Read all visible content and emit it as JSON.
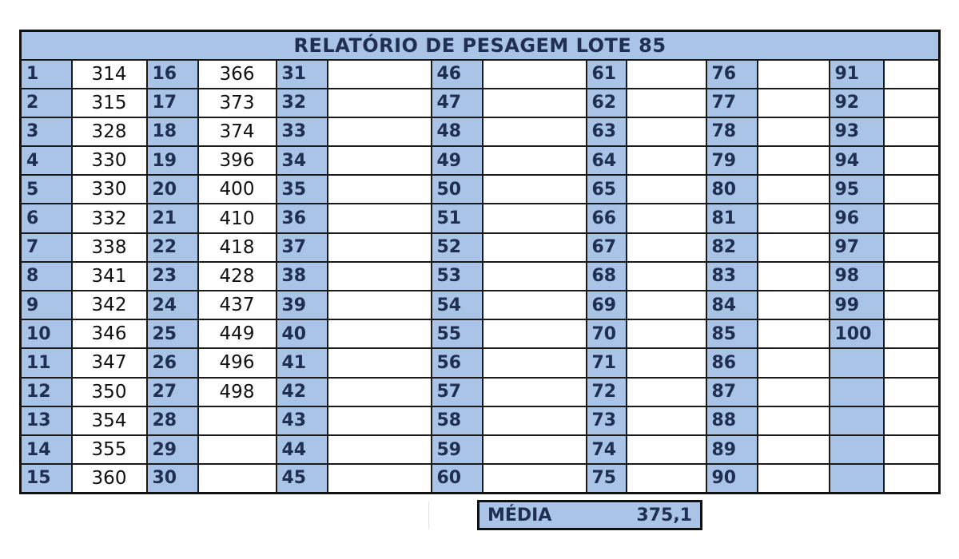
{
  "report": {
    "title": "RELATÓRIO DE PESAGEM LOTE 85",
    "columns": [
      {
        "numbers": [
          "1",
          "2",
          "3",
          "4",
          "5",
          "6",
          "7",
          "8",
          "9",
          "10",
          "11",
          "12",
          "13",
          "14",
          "15"
        ],
        "values": [
          "314",
          "315",
          "328",
          "330",
          "330",
          "332",
          "338",
          "341",
          "342",
          "346",
          "347",
          "350",
          "354",
          "355",
          "360"
        ]
      },
      {
        "numbers": [
          "16",
          "17",
          "18",
          "19",
          "20",
          "21",
          "22",
          "23",
          "24",
          "25",
          "26",
          "27",
          "28",
          "29",
          "30"
        ],
        "values": [
          "366",
          "373",
          "374",
          "396",
          "400",
          "410",
          "418",
          "428",
          "437",
          "449",
          "496",
          "498",
          "",
          "",
          ""
        ]
      },
      {
        "numbers": [
          "31",
          "32",
          "33",
          "34",
          "35",
          "36",
          "37",
          "38",
          "39",
          "40",
          "41",
          "42",
          "43",
          "44",
          "45"
        ],
        "values": [
          "",
          "",
          "",
          "",
          "",
          "",
          "",
          "",
          "",
          "",
          "",
          "",
          "",
          "",
          ""
        ]
      },
      {
        "numbers": [
          "46",
          "47",
          "48",
          "49",
          "50",
          "51",
          "52",
          "53",
          "54",
          "55",
          "56",
          "57",
          "58",
          "59",
          "60"
        ],
        "values": [
          "",
          "",
          "",
          "",
          "",
          "",
          "",
          "",
          "",
          "",
          "",
          "",
          "",
          "",
          ""
        ]
      },
      {
        "numbers": [
          "61",
          "62",
          "63",
          "64",
          "65",
          "66",
          "67",
          "68",
          "69",
          "70",
          "71",
          "72",
          "73",
          "74",
          "75"
        ],
        "values": [
          "",
          "",
          "",
          "",
          "",
          "",
          "",
          "",
          "",
          "",
          "",
          "",
          "",
          "",
          ""
        ]
      },
      {
        "numbers": [
          "76",
          "77",
          "78",
          "79",
          "80",
          "81",
          "82",
          "83",
          "84",
          "85",
          "86",
          "87",
          "88",
          "89",
          "90"
        ],
        "values": [
          "",
          "",
          "",
          "",
          "",
          "",
          "",
          "",
          "",
          "",
          "",
          "",
          "",
          "",
          ""
        ]
      },
      {
        "numbers": [
          "91",
          "92",
          "93",
          "94",
          "95",
          "96",
          "97",
          "98",
          "99",
          "100",
          "",
          "",
          "",
          "",
          ""
        ],
        "values": [
          "",
          "",
          "",
          "",
          "",
          "",
          "",
          "",
          "",
          "",
          "",
          "",
          "",
          "",
          ""
        ]
      }
    ],
    "summary": {
      "label": "MÉDIA",
      "value": "375,1"
    }
  },
  "colors": {
    "header_fill": "#a9c4e6",
    "header_text": "#1f2f52",
    "border": "#1a1a1a"
  }
}
